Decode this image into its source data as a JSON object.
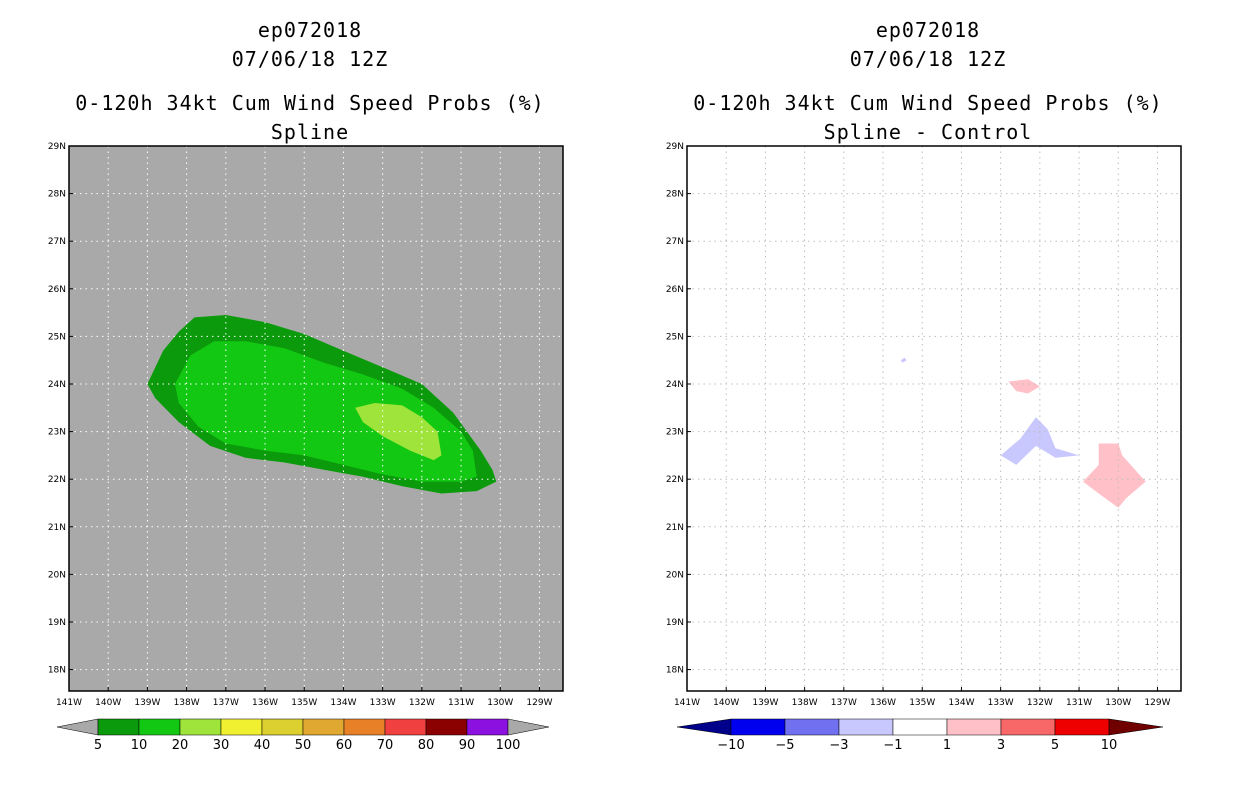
{
  "chart_data": [
    {
      "type": "heatmap",
      "name": "left",
      "title_lines": [
        "ep072018",
        "07/06/18 12Z",
        "0-120h 34kt Cum Wind Speed Probs (%)",
        "Spline"
      ],
      "x_ticks": [
        "141W",
        "140W",
        "139W",
        "138W",
        "137W",
        "136W",
        "135W",
        "134W",
        "133W",
        "132W",
        "131W",
        "130W",
        "129W"
      ],
      "y_ticks": [
        "29N",
        "28N",
        "27N",
        "26N",
        "25N",
        "24N",
        "23N",
        "22N",
        "21N",
        "20N",
        "19N",
        "18N"
      ],
      "xlim": [
        -141,
        -128.4
      ],
      "ylim": [
        17.55,
        29
      ],
      "background": "#a9a9a9",
      "grid": true,
      "contours": [
        {
          "level": 5,
          "color": "#0b9a0b",
          "points": [
            [
              -139,
              24
            ],
            [
              -138.6,
              24.7
            ],
            [
              -138.2,
              25.1
            ],
            [
              -137.8,
              25.4
            ],
            [
              -137,
              25.45
            ],
            [
              -136,
              25.3
            ],
            [
              -135,
              25.05
            ],
            [
              -134,
              24.7
            ],
            [
              -133,
              24.35
            ],
            [
              -132,
              24
            ],
            [
              -131.2,
              23.4
            ],
            [
              -130.5,
              22.6
            ],
            [
              -130.2,
              22.2
            ],
            [
              -130.1,
              21.95
            ],
            [
              -130.6,
              21.75
            ],
            [
              -131.5,
              21.7
            ],
            [
              -132.5,
              21.85
            ],
            [
              -133.5,
              22.05
            ],
            [
              -134.5,
              22.2
            ],
            [
              -135.5,
              22.35
            ],
            [
              -136.5,
              22.45
            ],
            [
              -137.4,
              22.7
            ],
            [
              -138.2,
              23.2
            ],
            [
              -138.8,
              23.7
            ]
          ]
        },
        {
          "level": 10,
          "color": "#12c812",
          "points": [
            [
              -138.3,
              24
            ],
            [
              -137.9,
              24.6
            ],
            [
              -137.3,
              24.9
            ],
            [
              -136.5,
              24.9
            ],
            [
              -135.5,
              24.75
            ],
            [
              -134.5,
              24.45
            ],
            [
              -133.5,
              24.2
            ],
            [
              -132.5,
              23.9
            ],
            [
              -131.7,
              23.5
            ],
            [
              -131,
              23
            ],
            [
              -130.7,
              22.6
            ],
            [
              -130.6,
              22.05
            ],
            [
              -131,
              21.95
            ],
            [
              -132,
              21.95
            ],
            [
              -133,
              22.1
            ],
            [
              -134,
              22.3
            ],
            [
              -135,
              22.5
            ],
            [
              -136,
              22.6
            ],
            [
              -137,
              22.75
            ],
            [
              -137.7,
              23.1
            ],
            [
              -138.2,
              23.6
            ]
          ]
        },
        {
          "level": 20,
          "color": "#9ee43a",
          "points": [
            [
              -133.7,
              23.5
            ],
            [
              -133.2,
              23.6
            ],
            [
              -132.5,
              23.55
            ],
            [
              -132,
              23.3
            ],
            [
              -131.6,
              23
            ],
            [
              -131.5,
              22.5
            ],
            [
              -131.7,
              22.4
            ],
            [
              -132.3,
              22.6
            ],
            [
              -133,
              22.9
            ],
            [
              -133.5,
              23.2
            ]
          ]
        }
      ],
      "colorbar": {
        "colors": [
          "#0b9a0b",
          "#12c812",
          "#9ee43a",
          "#f0f030",
          "#dcd030",
          "#e0a830",
          "#e88028",
          "#f04040",
          "#8b0000",
          "#8c10e0"
        ],
        "under_color": "#a9a9a9",
        "over_color": "#a9a9a9",
        "labels": [
          "5",
          "10",
          "20",
          "30",
          "40",
          "50",
          "60",
          "70",
          "80",
          "90",
          "100"
        ]
      }
    },
    {
      "type": "heatmap",
      "name": "right",
      "title_lines": [
        "ep072018",
        "07/06/18 12Z",
        "0-120h 34kt Cum Wind Speed Probs (%)",
        "Spline - Control"
      ],
      "x_ticks": [
        "141W",
        "140W",
        "139W",
        "138W",
        "137W",
        "136W",
        "135W",
        "134W",
        "133W",
        "132W",
        "131W",
        "130W",
        "129W"
      ],
      "y_ticks": [
        "29N",
        "28N",
        "27N",
        "26N",
        "25N",
        "24N",
        "23N",
        "22N",
        "21N",
        "20N",
        "19N",
        "18N"
      ],
      "xlim": [
        -141,
        -128.4
      ],
      "ylim": [
        17.55,
        29
      ],
      "background": "#ffffff",
      "grid": true,
      "contours": [
        {
          "level": -1,
          "color": "#c8c8ff",
          "points": [
            [
              -135.55,
              24.5
            ],
            [
              -135.45,
              24.55
            ],
            [
              -135.4,
              24.5
            ],
            [
              -135.5,
              24.45
            ]
          ]
        },
        {
          "level": 1,
          "color": "#ffc0c8",
          "points": [
            [
              -132.8,
              24.05
            ],
            [
              -132.3,
              24.1
            ],
            [
              -132,
              23.95
            ],
            [
              -132.3,
              23.8
            ],
            [
              -132.6,
              23.85
            ]
          ]
        },
        {
          "level": -1,
          "color": "#c8c8ff",
          "points": [
            [
              -133,
              22.5
            ],
            [
              -132.5,
              22.85
            ],
            [
              -132.1,
              23.3
            ],
            [
              -131.8,
              23.05
            ],
            [
              -131.6,
              22.65
            ],
            [
              -131,
              22.5
            ],
            [
              -131.6,
              22.45
            ],
            [
              -132.1,
              22.7
            ],
            [
              -132.6,
              22.3
            ]
          ]
        },
        {
          "level": 1,
          "color": "#ffc0c8",
          "points": [
            [
              -130.5,
              22.75
            ],
            [
              -130,
              22.75
            ],
            [
              -129.9,
              22.5
            ],
            [
              -129.3,
              21.95
            ],
            [
              -129.8,
              21.6
            ],
            [
              -130,
              21.4
            ],
            [
              -130.5,
              21.7
            ],
            [
              -130.9,
              21.95
            ],
            [
              -130.5,
              22.3
            ]
          ]
        }
      ],
      "colorbar": {
        "colors": [
          "#0000ee",
          "#7070f0",
          "#c8c8ff",
          "#ffffff",
          "#ffc0c8",
          "#f86868",
          "#ee0000"
        ],
        "under_color": "#00008b",
        "over_color": "#700000",
        "labels": [
          "-10",
          "-5",
          "-3",
          "-1",
          "1",
          "3",
          "5",
          "10"
        ]
      }
    }
  ]
}
